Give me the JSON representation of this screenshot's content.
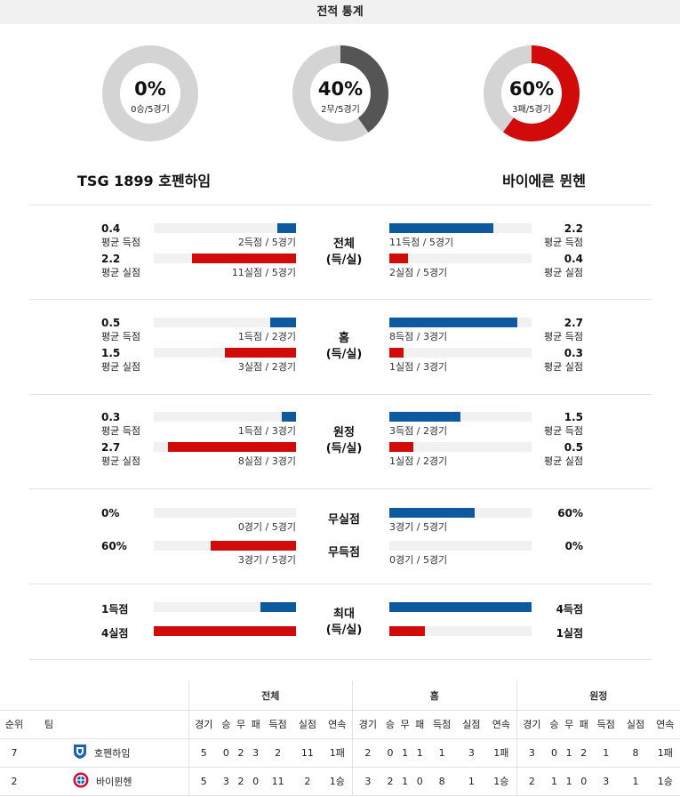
{
  "header": {
    "title": "전적 통계"
  },
  "donuts": [
    {
      "pct": "0%",
      "sub": "0승/5경기",
      "fraction": 0.0,
      "color": "#0e5a9e"
    },
    {
      "pct": "40%",
      "sub": "2무/5경기",
      "fraction": 0.4,
      "color": "#555555"
    },
    {
      "pct": "60%",
      "sub": "3패/5경기",
      "fraction": 0.6,
      "color": "#d10a0a"
    }
  ],
  "teams": {
    "home": "TSG 1899 호펜하임",
    "away": "바이에른 뮌헨"
  },
  "sections": [
    {
      "cat": [
        "전체",
        "(득/실)"
      ],
      "rows": [
        {
          "l_val": "0.4",
          "l_lab": "평균 득점",
          "l_cnt": "2득점 / 5경기",
          "l_frac": 0.13,
          "l_color": "blue",
          "r_val": "2.2",
          "r_lab": "평균 득점",
          "r_cnt": "11득점 / 5경기",
          "r_frac": 0.73,
          "r_color": "blue"
        },
        {
          "l_val": "2.2",
          "l_lab": "평균 실점",
          "l_cnt": "11실점 / 5경기",
          "l_frac": 0.73,
          "l_color": "red",
          "r_val": "0.4",
          "r_lab": "평균 실점",
          "r_cnt": "2실점 / 5경기",
          "r_frac": 0.13,
          "r_color": "red"
        }
      ]
    },
    {
      "cat": [
        "홈",
        "(득/실)"
      ],
      "rows": [
        {
          "l_val": "0.5",
          "l_lab": "평균 득점",
          "l_cnt": "1득점 / 2경기",
          "l_frac": 0.18,
          "l_color": "blue",
          "r_val": "2.7",
          "r_lab": "평균 득점",
          "r_cnt": "8득점 / 3경기",
          "r_frac": 0.9,
          "r_color": "blue"
        },
        {
          "l_val": "1.5",
          "l_lab": "평균 실점",
          "l_cnt": "3실점 / 2경기",
          "l_frac": 0.5,
          "l_color": "red",
          "r_val": "0.3",
          "r_lab": "평균 실점",
          "r_cnt": "1실점 / 3경기",
          "r_frac": 0.1,
          "r_color": "red"
        }
      ]
    },
    {
      "cat": [
        "원정",
        "(득/실)"
      ],
      "rows": [
        {
          "l_val": "0.3",
          "l_lab": "평균 득점",
          "l_cnt": "1득점 / 3경기",
          "l_frac": 0.1,
          "l_color": "blue",
          "r_val": "1.5",
          "r_lab": "평균 득점",
          "r_cnt": "3득점 / 2경기",
          "r_frac": 0.5,
          "r_color": "blue"
        },
        {
          "l_val": "2.7",
          "l_lab": "평균 실점",
          "l_cnt": "8실점 / 3경기",
          "l_frac": 0.9,
          "l_color": "red",
          "r_val": "0.5",
          "r_lab": "평균 실점",
          "r_cnt": "1실점 / 2경기",
          "r_frac": 0.17,
          "r_color": "red"
        }
      ]
    }
  ],
  "clean": {
    "rows": [
      {
        "cat": "무실점",
        "l_val": "0%",
        "l_cnt": "0경기 / 5경기",
        "l_frac": 0.0,
        "l_color": "blue",
        "r_val": "60%",
        "r_cnt": "3경기 / 5경기",
        "r_frac": 0.6,
        "r_color": "blue"
      },
      {
        "cat": "무득점",
        "l_val": "60%",
        "l_cnt": "3경기 / 5경기",
        "l_frac": 0.6,
        "l_color": "red",
        "r_val": "0%",
        "r_cnt": "0경기 / 5경기",
        "r_frac": 0.0,
        "r_color": "red"
      }
    ]
  },
  "max": {
    "cat": [
      "최대",
      "(득/실)"
    ],
    "rows": [
      {
        "l_val": "1득점",
        "l_frac": 0.25,
        "l_color": "blue",
        "r_val": "4득점",
        "r_frac": 1.0,
        "r_color": "blue"
      },
      {
        "l_val": "4실점",
        "l_frac": 1.0,
        "l_color": "red",
        "r_val": "1실점",
        "r_frac": 0.25,
        "r_color": "red"
      }
    ]
  },
  "standings": {
    "groups": [
      "전체",
      "홈",
      "원정"
    ],
    "col_rank": "순위",
    "col_team": "팀",
    "cols": [
      "경기",
      "승",
      "무",
      "패",
      "득점",
      "실점",
      "연속"
    ],
    "rows": [
      {
        "rank": "7",
        "team": "호펜하임",
        "icon": "hoffenheim-logo-icon",
        "all": [
          "5",
          "0",
          "2",
          "3",
          "2",
          "11",
          "1패"
        ],
        "home": [
          "2",
          "0",
          "1",
          "1",
          "1",
          "3",
          "1패"
        ],
        "away": [
          "3",
          "0",
          "1",
          "2",
          "1",
          "8",
          "1패"
        ]
      },
      {
        "rank": "2",
        "team": "바이뮌헨",
        "icon": "bayern-logo-icon",
        "all": [
          "5",
          "3",
          "2",
          "0",
          "11",
          "2",
          "1승"
        ],
        "home": [
          "3",
          "2",
          "1",
          "0",
          "8",
          "1",
          "1승"
        ],
        "away": [
          "2",
          "1",
          "1",
          "0",
          "3",
          "1",
          "1승"
        ]
      }
    ]
  }
}
